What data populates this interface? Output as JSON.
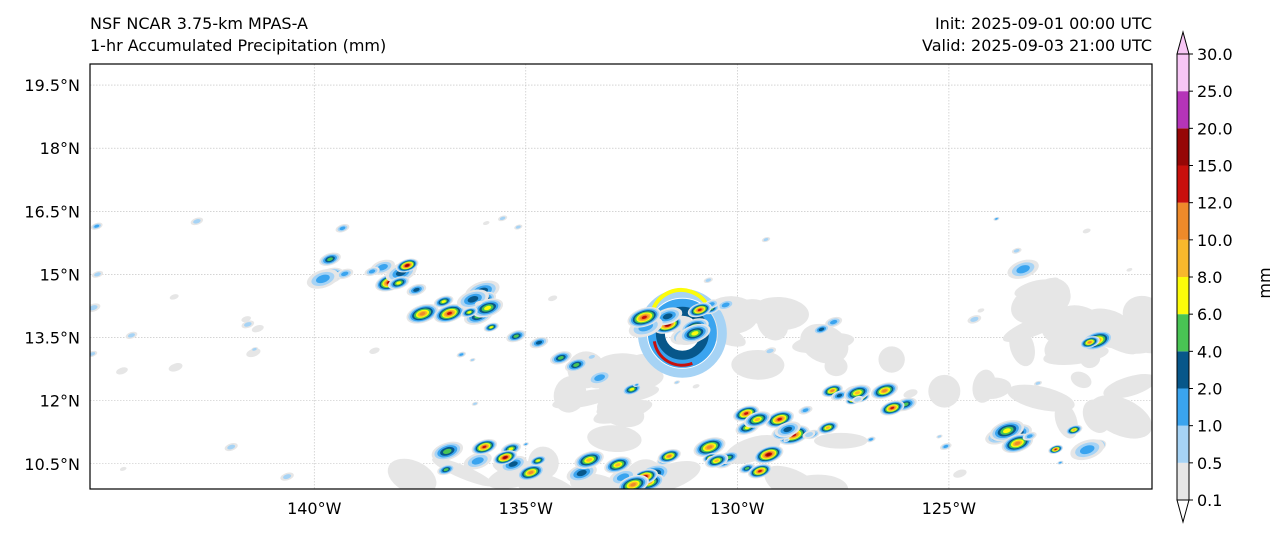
{
  "header": {
    "model_title": "NSF NCAR 3.75-km MPAS-A",
    "field_title": "1-hr Accumulated Precipitation (mm)",
    "init": "Init: 2025-09-01 00:00 UTC",
    "valid": "Valid: 2025-09-03 21:00 UTC"
  },
  "map": {
    "lon_range": [
      -145.3,
      -120.2
    ],
    "lat_range": [
      9.9,
      20.0
    ],
    "lat_ticks": [
      {
        "value": 19.5,
        "label": "19.5°N"
      },
      {
        "value": 18.0,
        "label": "18°N"
      },
      {
        "value": 16.5,
        "label": "16.5°N"
      },
      {
        "value": 15.0,
        "label": "15°N"
      },
      {
        "value": 13.5,
        "label": "13.5°N"
      },
      {
        "value": 12.0,
        "label": "12°N"
      },
      {
        "value": 10.5,
        "label": "10.5°N"
      }
    ],
    "lon_ticks": [
      {
        "value": -140,
        "label": "140°W"
      },
      {
        "value": -135,
        "label": "135°W"
      },
      {
        "value": -130,
        "label": "130°W"
      },
      {
        "value": -125,
        "label": "125°W"
      }
    ],
    "gridlines": true,
    "features": [
      {
        "kind": "cyclone-center",
        "lon": -131.3,
        "lat": 13.6
      },
      {
        "kind": "rainband",
        "lon": -131.9,
        "lat": 13.9
      },
      {
        "kind": "rainband",
        "lon": -130.6,
        "lat": 14.2
      },
      {
        "kind": "band",
        "lon": -138.5,
        "lat": 15.1
      },
      {
        "kind": "band",
        "lon": -136.8,
        "lat": 14.3
      },
      {
        "kind": "band",
        "lon": -129.0,
        "lat": 11.4
      },
      {
        "kind": "band",
        "lon": -127.0,
        "lat": 12.0
      },
      {
        "kind": "band",
        "lon": -133.0,
        "lat": 10.3
      },
      {
        "kind": "band",
        "lon": -130.5,
        "lat": 10.6
      },
      {
        "kind": "band",
        "lon": -122.8,
        "lat": 11.0
      },
      {
        "kind": "band",
        "lon": -136.0,
        "lat": 10.6
      },
      {
        "kind": "cell",
        "lon": -123.2,
        "lat": 15.0
      },
      {
        "kind": "cell",
        "lon": -121.8,
        "lat": 13.5
      },
      {
        "kind": "cell",
        "lon": -127.7,
        "lat": 13.7
      }
    ]
  },
  "colorbar": {
    "unit_label": "mm",
    "levels": [
      "0.1",
      "0.5",
      "1.0",
      "2.0",
      "4.0",
      "6.0",
      "8.0",
      "10.0",
      "12.0",
      "15.0",
      "20.0",
      "25.0",
      "30.0"
    ],
    "colors": [
      "#e6e6e6",
      "#a6d3f5",
      "#3aa4ef",
      "#07578a",
      "#49c454",
      "#fcfc0a",
      "#f8b82c",
      "#ee8a2a",
      "#c8100c",
      "#960606",
      "#b534b8",
      "#f7c6f5"
    ]
  }
}
